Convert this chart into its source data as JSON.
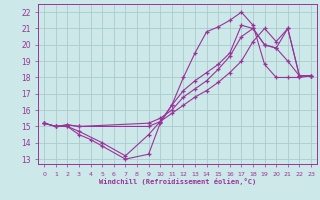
{
  "xlabel": "Windchill (Refroidissement éolien,°C)",
  "bg_color": "#cce8e8",
  "line_color": "#993399",
  "grid_color": "#aacccc",
  "xlim": [
    -0.5,
    23.5
  ],
  "ylim": [
    12.7,
    22.5
  ],
  "xticks": [
    0,
    1,
    2,
    3,
    4,
    5,
    6,
    7,
    8,
    9,
    10,
    11,
    12,
    13,
    14,
    15,
    16,
    17,
    18,
    19,
    20,
    21,
    22,
    23
  ],
  "yticks": [
    13,
    14,
    15,
    16,
    17,
    18,
    19,
    20,
    21,
    22
  ],
  "lines": [
    {
      "x": [
        0,
        1,
        2,
        3,
        4,
        5,
        7,
        9,
        10,
        11,
        12,
        13,
        14,
        15,
        16,
        17,
        18,
        19,
        20,
        21,
        22,
        23
      ],
      "y": [
        15.2,
        15.0,
        15.0,
        14.5,
        14.2,
        13.8,
        13.0,
        13.3,
        15.2,
        16.3,
        18.0,
        19.5,
        20.8,
        21.1,
        21.5,
        22.0,
        21.2,
        18.8,
        18.0,
        18.0,
        18.0,
        18.1
      ]
    },
    {
      "x": [
        0,
        1,
        2,
        3,
        5,
        7,
        9,
        10,
        11,
        12,
        13,
        14,
        15,
        16,
        17,
        18,
        19,
        20,
        21,
        22,
        23
      ],
      "y": [
        15.2,
        15.0,
        15.0,
        14.7,
        14.0,
        13.2,
        14.5,
        15.3,
        16.3,
        17.2,
        17.8,
        18.3,
        18.8,
        19.5,
        21.2,
        21.0,
        20.0,
        19.8,
        19.0,
        18.1,
        18.1
      ]
    },
    {
      "x": [
        0,
        1,
        2,
        3,
        9,
        10,
        11,
        12,
        13,
        14,
        15,
        16,
        17,
        18,
        19,
        20,
        21,
        22,
        23
      ],
      "y": [
        15.2,
        15.0,
        15.1,
        15.0,
        15.2,
        15.5,
        16.0,
        16.8,
        17.3,
        17.8,
        18.5,
        19.3,
        20.5,
        21.0,
        20.0,
        19.8,
        21.0,
        18.1,
        18.1
      ]
    },
    {
      "x": [
        0,
        1,
        2,
        3,
        9,
        10,
        11,
        12,
        13,
        14,
        15,
        16,
        17,
        18,
        19,
        20,
        21,
        22,
        23
      ],
      "y": [
        15.2,
        15.0,
        15.1,
        15.0,
        15.0,
        15.3,
        15.8,
        16.3,
        16.8,
        17.2,
        17.7,
        18.3,
        19.0,
        20.2,
        21.0,
        20.2,
        21.0,
        18.1,
        18.1
      ]
    }
  ]
}
